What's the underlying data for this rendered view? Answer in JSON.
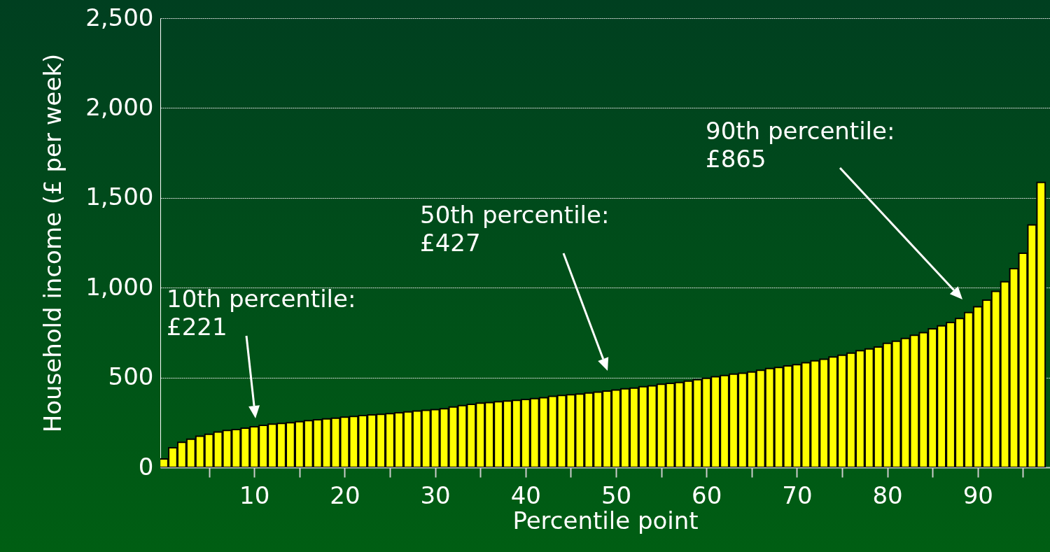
{
  "chart_data": {
    "type": "bar",
    "xlabel": "Percentile point",
    "ylabel": "Household income (£ per week)",
    "x": [
      0,
      1,
      2,
      3,
      4,
      5,
      6,
      7,
      8,
      9,
      10,
      11,
      12,
      13,
      14,
      15,
      16,
      17,
      18,
      19,
      20,
      21,
      22,
      23,
      24,
      25,
      26,
      27,
      28,
      29,
      30,
      31,
      32,
      33,
      34,
      35,
      36,
      37,
      38,
      39,
      40,
      41,
      42,
      43,
      44,
      45,
      46,
      47,
      48,
      49,
      50,
      51,
      52,
      53,
      54,
      55,
      56,
      57,
      58,
      59,
      60,
      61,
      62,
      63,
      64,
      65,
      66,
      67,
      68,
      69,
      70,
      71,
      72,
      73,
      74,
      75,
      76,
      77,
      78,
      79,
      80,
      81,
      82,
      83,
      84,
      85,
      86,
      87,
      88,
      89,
      90,
      91,
      92,
      93,
      94,
      95,
      96,
      97
    ],
    "values": [
      47,
      109,
      139,
      157,
      173,
      184,
      197,
      205,
      210,
      218,
      226,
      234,
      240,
      244,
      248,
      254,
      260,
      265,
      270,
      274,
      279,
      283,
      288,
      292,
      295,
      299,
      304,
      309,
      313,
      317,
      321,
      326,
      336,
      344,
      350,
      357,
      360,
      365,
      369,
      373,
      378,
      383,
      387,
      395,
      400,
      404,
      408,
      414,
      419,
      424,
      430,
      437,
      441,
      449,
      454,
      462,
      467,
      472,
      480,
      488,
      496,
      504,
      511,
      519,
      524,
      531,
      540,
      550,
      556,
      565,
      571,
      582,
      593,
      602,
      614,
      624,
      636,
      649,
      659,
      670,
      690,
      702,
      717,
      735,
      750,
      771,
      788,
      806,
      828,
      862,
      894,
      931,
      979,
      1033,
      1106,
      1192,
      1349,
      1586
    ],
    "color": "#ffff00",
    "xlim": [
      0,
      97.6
    ],
    "xticks": [
      {
        "value": 5,
        "label": null
      },
      10,
      {
        "value": 15,
        "label": null
      },
      20,
      {
        "value": 25,
        "label": null
      },
      30,
      {
        "value": 35,
        "label": null
      },
      40,
      {
        "value": 45,
        "label": null
      },
      50,
      {
        "value": 55,
        "label": null
      },
      60,
      {
        "value": 65,
        "label": null
      },
      70,
      {
        "value": 75,
        "label": null
      },
      80,
      {
        "value": 85,
        "label": null
      },
      90,
      {
        "value": 95,
        "label": null
      }
    ],
    "ylim": [
      0,
      2500
    ],
    "yticks": [
      0,
      500,
      {
        "value": 1000,
        "label": "1,000"
      },
      {
        "value": 1500,
        "label": "1,500"
      },
      {
        "value": 2000,
        "label": "2,000"
      },
      {
        "value": 2500,
        "label": "2,500"
      }
    ],
    "grid": "y",
    "annotations": [
      "10th percentile:\n£221",
      "50th percentile:\n£427",
      "90th percentile:\n£865"
    ]
  }
}
